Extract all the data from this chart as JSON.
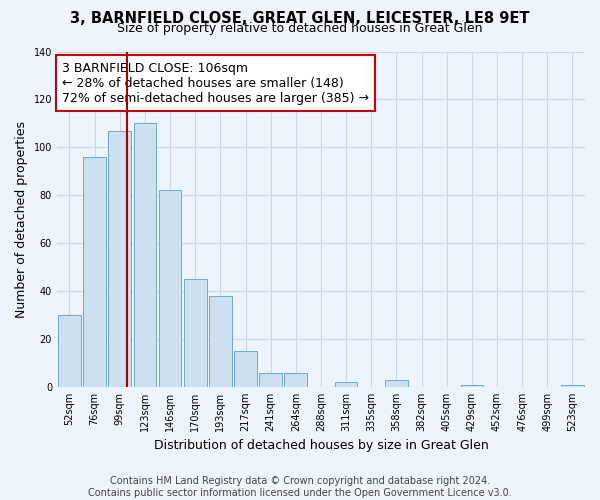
{
  "title": "3, BARNFIELD CLOSE, GREAT GLEN, LEICESTER, LE8 9ET",
  "subtitle": "Size of property relative to detached houses in Great Glen",
  "xlabel": "Distribution of detached houses by size in Great Glen",
  "ylabel": "Number of detached properties",
  "bar_color": "#cce0f0",
  "bar_edge_color": "#6aaad4",
  "categories": [
    "52sqm",
    "76sqm",
    "99sqm",
    "123sqm",
    "146sqm",
    "170sqm",
    "193sqm",
    "217sqm",
    "241sqm",
    "264sqm",
    "288sqm",
    "311sqm",
    "335sqm",
    "358sqm",
    "382sqm",
    "405sqm",
    "429sqm",
    "452sqm",
    "476sqm",
    "499sqm",
    "523sqm"
  ],
  "values": [
    30,
    96,
    107,
    110,
    82,
    45,
    38,
    15,
    6,
    6,
    0,
    2,
    0,
    3,
    0,
    0,
    1,
    0,
    0,
    0,
    1
  ],
  "ylim": [
    0,
    140
  ],
  "yticks": [
    0,
    20,
    40,
    60,
    80,
    100,
    120,
    140
  ],
  "vline_color": "#aa0000",
  "annotation_line1": "3 BARNFIELD CLOSE: 106sqm",
  "annotation_line2": "← 28% of detached houses are smaller (148)",
  "annotation_line3": "72% of semi-detached houses are larger (385) →",
  "footer_text": "Contains HM Land Registry data © Crown copyright and database right 2024.\nContains public sector information licensed under the Open Government Licence v3.0.",
  "background_color": "#eef4fb",
  "plot_bg_color": "#eef4fb",
  "grid_color": "#c8d8eb",
  "title_fontsize": 10.5,
  "subtitle_fontsize": 9,
  "axis_label_fontsize": 9,
  "tick_fontsize": 7,
  "annotation_fontsize": 9,
  "footer_fontsize": 7
}
